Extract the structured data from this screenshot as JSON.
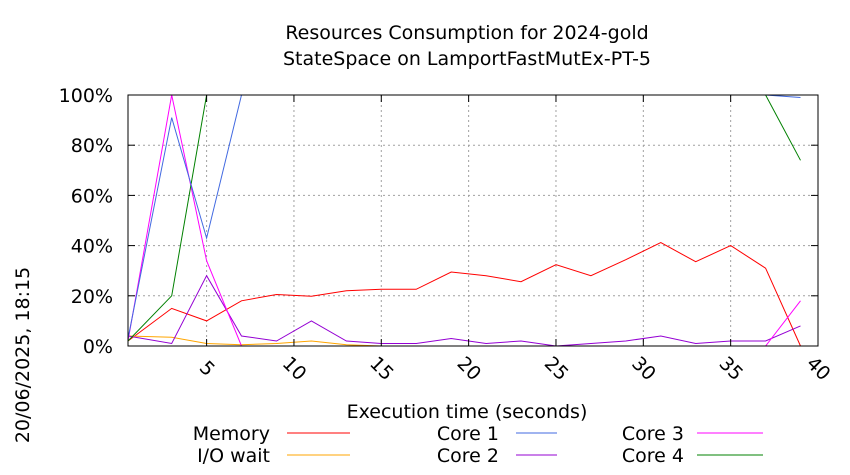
{
  "chart_data": {
    "type": "line",
    "title": "Resources Consumption for 2024-gold",
    "subtitle": "StateSpace on LamportFastMutEx-PT-5",
    "xlabel": "Execution time (seconds)",
    "ylabel": "",
    "side_label": "20/06/2025, 18:15",
    "xlim": [
      0.5,
      40
    ],
    "ylim": [
      0,
      100
    ],
    "x_ticks": [
      5,
      10,
      15,
      20,
      25,
      30,
      35,
      40
    ],
    "y_ticks": [
      0,
      20,
      40,
      60,
      80,
      100
    ],
    "y_tick_labels": [
      "0%",
      "20%",
      "40%",
      "60%",
      "80%",
      "100%"
    ],
    "grid": true,
    "legend_position": "bottom",
    "series": [
      {
        "name": "Memory",
        "color": "#ff0000",
        "x": [
          0.5,
          3,
          5,
          7,
          9,
          11,
          13,
          15,
          17,
          19,
          21,
          23,
          25,
          27,
          29,
          31,
          33,
          35,
          37,
          39
        ],
        "y": [
          2,
          15,
          10,
          18,
          20.5,
          19.8,
          22,
          22.6,
          22.6,
          29.5,
          28,
          25.6,
          32.4,
          28,
          34.4,
          41.2,
          33.6,
          40,
          31,
          0
        ]
      },
      {
        "name": "I/O wait",
        "color": "#ffa500",
        "x": [
          0.5,
          3,
          5,
          7,
          9,
          11,
          13,
          15,
          17,
          19,
          21,
          23,
          25,
          27,
          29,
          31,
          33,
          35,
          37,
          39
        ],
        "y": [
          4,
          3.5,
          1,
          0.5,
          1,
          2,
          0.5,
          0,
          0,
          0,
          0,
          0,
          0,
          0,
          0,
          0,
          0,
          0,
          0,
          0
        ]
      },
      {
        "name": "Core 1",
        "color": "#4169e1",
        "x": [
          0.5,
          3,
          5,
          7,
          9,
          11,
          13,
          15,
          17,
          19,
          21,
          23,
          25,
          27,
          29,
          31,
          33,
          35,
          37,
          39
        ],
        "y": [
          3,
          91,
          43,
          100,
          100,
          100,
          100,
          100,
          100,
          100,
          100,
          100,
          100,
          100,
          100,
          100,
          100,
          100,
          100,
          99
        ]
      },
      {
        "name": "Core 2",
        "color": "#9400d3",
        "x": [
          0.5,
          3,
          5,
          7,
          9,
          11,
          13,
          15,
          17,
          19,
          21,
          23,
          25,
          27,
          29,
          31,
          33,
          35,
          37,
          39
        ],
        "y": [
          4,
          1,
          28,
          4,
          2,
          10,
          2,
          1,
          1,
          3,
          1,
          2,
          0,
          1,
          2,
          4,
          1,
          2,
          2,
          8
        ]
      },
      {
        "name": "Core 3",
        "color": "#ff00ff",
        "x": [
          0.5,
          3,
          5,
          7,
          9,
          11,
          13,
          15,
          17,
          19,
          21,
          23,
          25,
          27,
          29,
          31,
          33,
          35,
          37,
          39
        ],
        "y": [
          2,
          100,
          34,
          0,
          0,
          0,
          0,
          0,
          0,
          0,
          0,
          0,
          0,
          0,
          0,
          0,
          0,
          0,
          0,
          18
        ]
      },
      {
        "name": "Core 4",
        "color": "#008000",
        "x": [
          0.5,
          3,
          5,
          7,
          9,
          11,
          13,
          15,
          17,
          19,
          21,
          23,
          25,
          27,
          29,
          31,
          33,
          35,
          37,
          39
        ],
        "y": [
          2,
          20,
          100,
          100,
          100,
          100,
          100,
          100,
          100,
          100,
          100,
          100,
          100,
          100,
          100,
          100,
          100,
          100,
          100,
          74
        ]
      }
    ]
  }
}
